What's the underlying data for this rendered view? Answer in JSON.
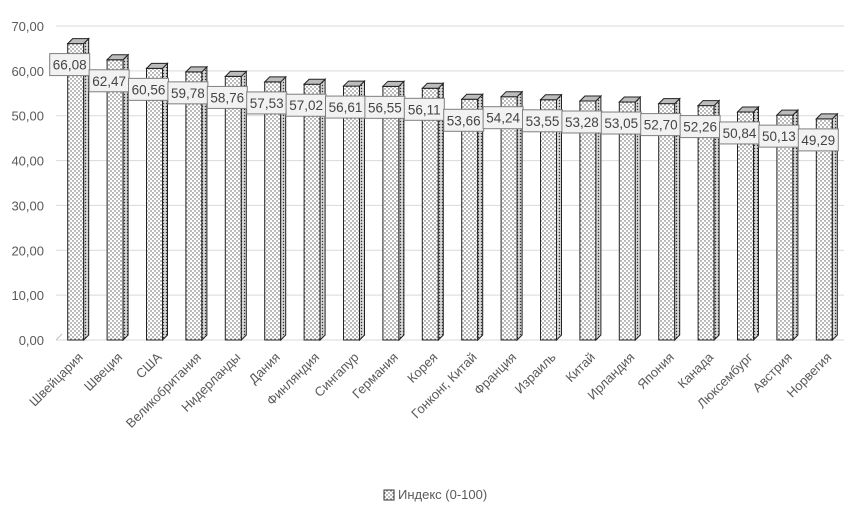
{
  "chart_data": {
    "type": "bar",
    "categories": [
      "Швейцария",
      "Швеция",
      "США",
      "Великобритания",
      "Нидерланды",
      "Дания",
      "Финляндия",
      "Сингапур",
      "Германия",
      "Корея",
      "Гонконг, Китай",
      "Франция",
      "Израиль",
      "Китай",
      "Ирландия",
      "Япония",
      "Канада",
      "Люксембург",
      "Австрия",
      "Норвегия"
    ],
    "values": [
      66.08,
      62.47,
      60.56,
      59.78,
      58.76,
      57.53,
      57.02,
      56.61,
      56.55,
      56.11,
      53.66,
      54.24,
      53.55,
      53.28,
      53.05,
      52.7,
      52.26,
      50.84,
      50.13,
      49.29
    ],
    "value_labels": [
      "66,08",
      "62,47",
      "60,56",
      "59,78",
      "58,76",
      "57,53",
      "57,02",
      "56,61",
      "56,55",
      "56,11",
      "53,66",
      "54,24",
      "53,55",
      "53,28",
      "53,05",
      "52,70",
      "52,26",
      "50,84",
      "50,13",
      "49,29"
    ],
    "series": [
      {
        "name": "Индекс (0-100)"
      }
    ],
    "ylim": [
      0,
      70
    ],
    "yticks": [
      "0,00",
      "10,00",
      "20,00",
      "30,00",
      "40,00",
      "50,00",
      "60,00",
      "70,00"
    ],
    "grid": true,
    "legend": "bottom",
    "bar_style": "3d-dotted"
  }
}
